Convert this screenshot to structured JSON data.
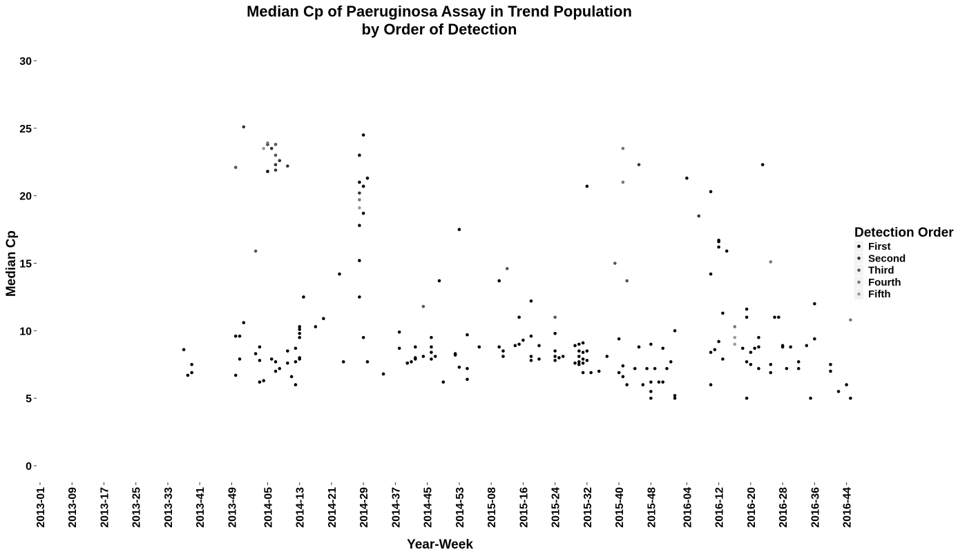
{
  "chart_data": {
    "type": "scatter",
    "title_line1": "Median Cp of Paeruginosa Assay in Trend Population",
    "title_line2": "by Order of Detection",
    "xlabel": "Year-Week",
    "ylabel": "Median Cp",
    "ylim": [
      0,
      30
    ],
    "yticks": [
      0,
      5,
      10,
      15,
      20,
      25,
      30
    ],
    "x_axis_kind": "categorical-weeks",
    "x_categories_first": "2013-01",
    "x_categories_last": "2016-46",
    "xticks": [
      "2013-01",
      "2013-09",
      "2013-17",
      "2013-25",
      "2013-33",
      "2013-41",
      "2013-49",
      "2014-05",
      "2014-13",
      "2014-21",
      "2014-29",
      "2014-37",
      "2014-45",
      "2014-53",
      "2015-08",
      "2015-16",
      "2015-24",
      "2015-32",
      "2015-40",
      "2015-48",
      "2016-04",
      "2016-12",
      "2016-20",
      "2016-28",
      "2016-36",
      "2016-44"
    ],
    "grid": false,
    "legend": {
      "title": "Detection Order",
      "placement": "right",
      "entries": [
        {
          "name": "First",
          "color": "#000000"
        },
        {
          "name": "Second",
          "color": "#333333"
        },
        {
          "name": "Third",
          "color": "#555555"
        },
        {
          "name": "Fourth",
          "color": "#777777"
        },
        {
          "name": "Fifth",
          "color": "#9a9a9a"
        }
      ]
    },
    "series": [
      {
        "name": "First",
        "points": [
          [
            "2013-37",
            8.6
          ],
          [
            "2013-38",
            6.7
          ],
          [
            "2013-39",
            6.9
          ],
          [
            "2013-39",
            7.5
          ],
          [
            "2013-50",
            9.6
          ],
          [
            "2013-50",
            6.7
          ],
          [
            "2013-51",
            9.6
          ],
          [
            "2013-51",
            7.9
          ],
          [
            "2013-52",
            10.6
          ],
          [
            "2014-02",
            8.3
          ],
          [
            "2014-03",
            7.8
          ],
          [
            "2014-03",
            8.8
          ],
          [
            "2014-03",
            6.2
          ],
          [
            "2014-04",
            6.3
          ],
          [
            "2014-05",
            21.8
          ],
          [
            "2014-06",
            7.9
          ],
          [
            "2014-07",
            7.0
          ],
          [
            "2014-07",
            7.7
          ],
          [
            "2014-08",
            7.2
          ],
          [
            "2014-10",
            7.6
          ],
          [
            "2014-10",
            8.5
          ],
          [
            "2014-11",
            6.6
          ],
          [
            "2014-12",
            7.7
          ],
          [
            "2014-12",
            8.7
          ],
          [
            "2014-12",
            6.0
          ],
          [
            "2014-13",
            7.9
          ],
          [
            "2014-13",
            8.0
          ],
          [
            "2014-13",
            9.5
          ],
          [
            "2014-13",
            9.8
          ],
          [
            "2014-13",
            10.1
          ],
          [
            "2014-13",
            10.3
          ],
          [
            "2014-14",
            12.5
          ],
          [
            "2014-17",
            10.3
          ],
          [
            "2014-19",
            10.9
          ],
          [
            "2014-23",
            14.2
          ],
          [
            "2014-24",
            7.7
          ],
          [
            "2014-28",
            23.0
          ],
          [
            "2014-28",
            21.0
          ],
          [
            "2014-28",
            17.8
          ],
          [
            "2014-28",
            15.2
          ],
          [
            "2014-28",
            12.5
          ],
          [
            "2014-29",
            24.5
          ],
          [
            "2014-29",
            20.7
          ],
          [
            "2014-29",
            18.7
          ],
          [
            "2014-29",
            9.5
          ],
          [
            "2014-30",
            21.3
          ],
          [
            "2014-30",
            7.7
          ],
          [
            "2014-34",
            6.8
          ],
          [
            "2014-38",
            9.9
          ],
          [
            "2014-38",
            8.7
          ],
          [
            "2014-40",
            7.6
          ],
          [
            "2014-40",
            7.6
          ],
          [
            "2014-41",
            7.7
          ],
          [
            "2014-42",
            8.8
          ],
          [
            "2014-42",
            8.0
          ],
          [
            "2014-42",
            7.9
          ],
          [
            "2014-44",
            8.1
          ],
          [
            "2014-46",
            9.5
          ],
          [
            "2014-46",
            8.8
          ],
          [
            "2014-46",
            8.4
          ],
          [
            "2014-46",
            7.9
          ],
          [
            "2014-47",
            8.1
          ],
          [
            "2014-48",
            13.7
          ],
          [
            "2014-49",
            6.2
          ],
          [
            "2014-52",
            8.3
          ],
          [
            "2014-52",
            8.2
          ],
          [
            "2014-53",
            17.5
          ],
          [
            "2014-53",
            7.3
          ],
          [
            "2015-02",
            9.7
          ],
          [
            "2015-02",
            7.2
          ],
          [
            "2015-02",
            6.4
          ],
          [
            "2015-05",
            8.8
          ],
          [
            "2015-10",
            13.7
          ],
          [
            "2015-10",
            8.8
          ],
          [
            "2015-11",
            8.5
          ],
          [
            "2015-11",
            8.1
          ],
          [
            "2015-14",
            8.9
          ],
          [
            "2015-15",
            11.0
          ],
          [
            "2015-15",
            9.0
          ],
          [
            "2015-16",
            9.3
          ],
          [
            "2015-18",
            9.6
          ],
          [
            "2015-18",
            12.2
          ],
          [
            "2015-18",
            8.1
          ],
          [
            "2015-18",
            7.8
          ],
          [
            "2015-20",
            8.9
          ],
          [
            "2015-20",
            7.9
          ],
          [
            "2015-24",
            9.8
          ],
          [
            "2015-24",
            8.5
          ],
          [
            "2015-24",
            8.1
          ],
          [
            "2015-24",
            7.8
          ],
          [
            "2015-25",
            8.0
          ],
          [
            "2015-26",
            8.1
          ],
          [
            "2015-29",
            8.9
          ],
          [
            "2015-29",
            7.6
          ],
          [
            "2015-30",
            9.0
          ],
          [
            "2015-30",
            8.5
          ],
          [
            "2015-30",
            8.1
          ],
          [
            "2015-30",
            7.7
          ],
          [
            "2015-30",
            7.5
          ],
          [
            "2015-31",
            9.1
          ],
          [
            "2015-31",
            8.4
          ],
          [
            "2015-31",
            7.9
          ],
          [
            "2015-31",
            7.6
          ],
          [
            "2015-31",
            6.9
          ],
          [
            "2015-32",
            20.7
          ],
          [
            "2015-32",
            8.5
          ],
          [
            "2015-32",
            7.8
          ],
          [
            "2015-33",
            6.9
          ],
          [
            "2015-35",
            7.0
          ],
          [
            "2015-37",
            8.1
          ],
          [
            "2015-40",
            9.4
          ],
          [
            "2015-40",
            6.9
          ],
          [
            "2015-41",
            7.4
          ],
          [
            "2015-41",
            6.6
          ],
          [
            "2015-42",
            6.0
          ],
          [
            "2015-44",
            7.2
          ],
          [
            "2015-45",
            8.8
          ],
          [
            "2015-46",
            6.0
          ],
          [
            "2015-47",
            7.2
          ],
          [
            "2015-48",
            9.0
          ],
          [
            "2015-48",
            6.2
          ],
          [
            "2015-48",
            5.5
          ],
          [
            "2015-48",
            5.0
          ],
          [
            "2015-49",
            7.2
          ],
          [
            "2015-50",
            6.2
          ],
          [
            "2015-51",
            8.7
          ],
          [
            "2015-51",
            6.2
          ],
          [
            "2015-52",
            7.2
          ],
          [
            "2015-53",
            7.7
          ],
          [
            "2016-01",
            10.0
          ],
          [
            "2016-01",
            5.2
          ],
          [
            "2016-01",
            5.0
          ],
          [
            "2016-04",
            21.3
          ],
          [
            "2016-10",
            20.3
          ],
          [
            "2016-10",
            14.2
          ],
          [
            "2016-10",
            8.4
          ],
          [
            "2016-10",
            6.0
          ],
          [
            "2016-11",
            8.6
          ],
          [
            "2016-12",
            16.7
          ],
          [
            "2016-12",
            16.6
          ],
          [
            "2016-12",
            16.2
          ],
          [
            "2016-12",
            9.2
          ],
          [
            "2016-13",
            11.3
          ],
          [
            "2016-13",
            7.9
          ],
          [
            "2016-14",
            15.9
          ],
          [
            "2016-18",
            8.7
          ],
          [
            "2016-19",
            11.6
          ],
          [
            "2016-19",
            11.0
          ],
          [
            "2016-19",
            5.0
          ],
          [
            "2016-19",
            7.7
          ],
          [
            "2016-20",
            8.4
          ],
          [
            "2016-20",
            7.5
          ],
          [
            "2016-21",
            8.7
          ],
          [
            "2016-22",
            9.5
          ],
          [
            "2016-22",
            8.8
          ],
          [
            "2016-22",
            7.2
          ],
          [
            "2016-23",
            22.3
          ],
          [
            "2016-25",
            7.5
          ],
          [
            "2016-25",
            6.9
          ],
          [
            "2016-26",
            11.0
          ],
          [
            "2016-27",
            11.0
          ],
          [
            "2016-28",
            8.9
          ],
          [
            "2016-28",
            8.8
          ],
          [
            "2016-29",
            7.2
          ],
          [
            "2016-30",
            8.8
          ],
          [
            "2016-32",
            7.7
          ],
          [
            "2016-32",
            7.2
          ],
          [
            "2016-34",
            8.9
          ],
          [
            "2016-35",
            5.0
          ],
          [
            "2016-36",
            9.4
          ],
          [
            "2016-36",
            12.0
          ],
          [
            "2016-40",
            7.5
          ],
          [
            "2016-40",
            7.0
          ],
          [
            "2016-42",
            5.5
          ],
          [
            "2016-44",
            6.0
          ],
          [
            "2016-45",
            5.0
          ]
        ]
      },
      {
        "name": "Second",
        "points": [
          [
            "2013-52",
            25.1
          ],
          [
            "2014-05",
            23.8
          ],
          [
            "2014-06",
            23.5
          ],
          [
            "2014-07",
            21.9
          ],
          [
            "2014-07",
            22.3
          ],
          [
            "2014-08",
            22.6
          ],
          [
            "2014-10",
            22.2
          ],
          [
            "2014-28",
            20.2
          ],
          [
            "2015-45",
            22.3
          ],
          [
            "2016-07",
            18.5
          ]
        ]
      },
      {
        "name": "Third",
        "points": [
          [
            "2013-50",
            22.1
          ],
          [
            "2014-02",
            15.9
          ],
          [
            "2014-07",
            23.8
          ],
          [
            "2014-07",
            23.0
          ],
          [
            "2014-44",
            11.8
          ],
          [
            "2015-12",
            14.6
          ],
          [
            "2015-24",
            11.0
          ],
          [
            "2015-39",
            15.0
          ],
          [
            "2015-42",
            13.7
          ]
        ]
      },
      {
        "name": "Fourth",
        "points": [
          [
            "2014-05",
            23.9
          ],
          [
            "2014-28",
            19.7
          ],
          [
            "2015-41",
            21.0
          ],
          [
            "2015-41",
            23.5
          ],
          [
            "2016-16",
            10.3
          ],
          [
            "2016-25",
            15.1
          ],
          [
            "2016-45",
            10.8
          ]
        ]
      },
      {
        "name": "Fifth",
        "points": [
          [
            "2014-04",
            23.5
          ],
          [
            "2014-28",
            19.1
          ],
          [
            "2016-16",
            9.5
          ],
          [
            "2016-16",
            9.0
          ]
        ]
      }
    ]
  }
}
